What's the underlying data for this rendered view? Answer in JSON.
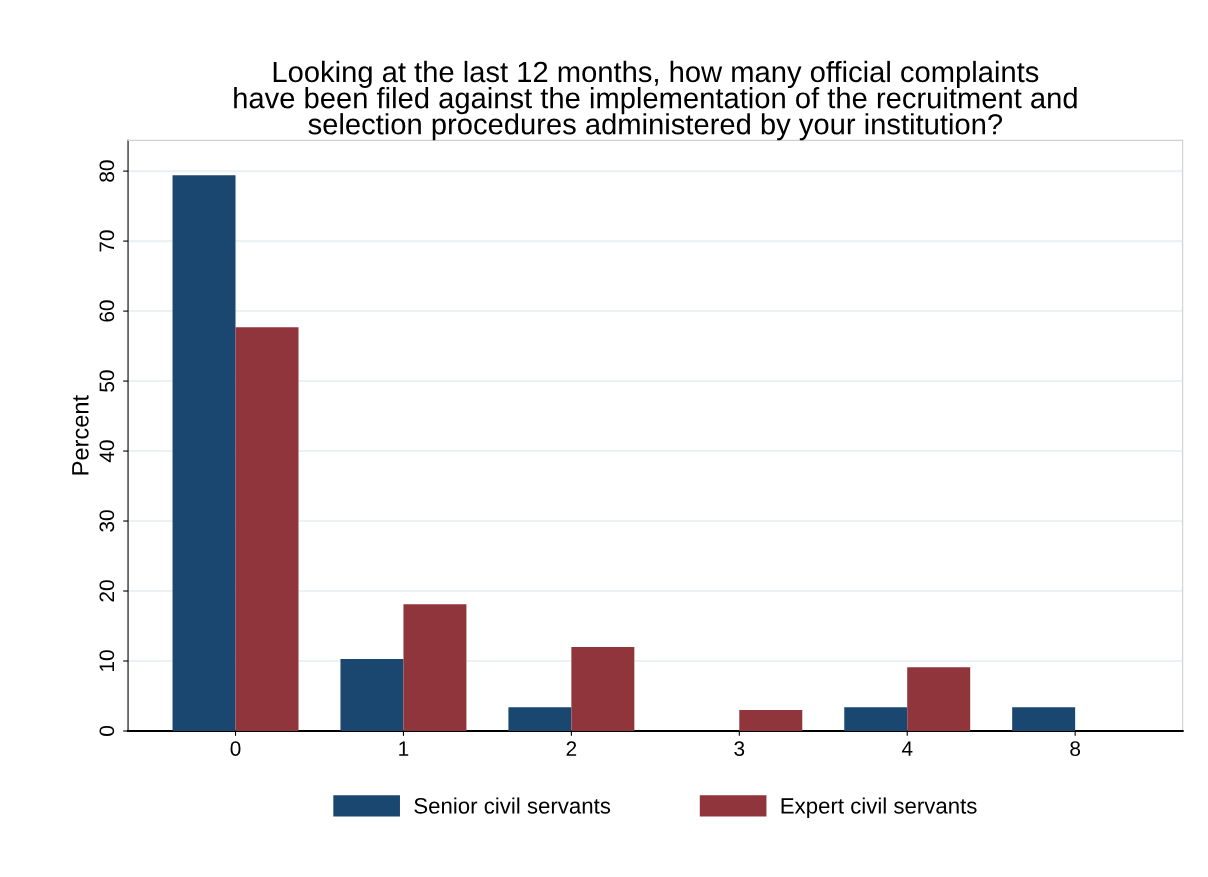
{
  "chart_data": {
    "type": "bar",
    "title": "Looking at the last 12 months, how many official complaints\nhave been filed against the implementation of the recruitment and\nselection procedures administered by your institution?",
    "ylabel": "Percent",
    "categories": [
      "0",
      "1",
      "2",
      "3",
      "4",
      "8"
    ],
    "series": [
      {
        "name": "Senior civil servants",
        "color": "#1a476f",
        "values": [
          79.4,
          10.3,
          3.4,
          0,
          3.4,
          3.4
        ]
      },
      {
        "name": "Expert civil servants",
        "color": "#90353b",
        "values": [
          57.7,
          18.1,
          12.0,
          3.0,
          9.1,
          0
        ]
      }
    ],
    "ylim": [
      0,
      84.4
    ],
    "yticks": [
      0,
      10,
      20,
      30,
      40,
      50,
      60,
      70,
      80
    ],
    "grid": "y",
    "legend": "bottom"
  }
}
